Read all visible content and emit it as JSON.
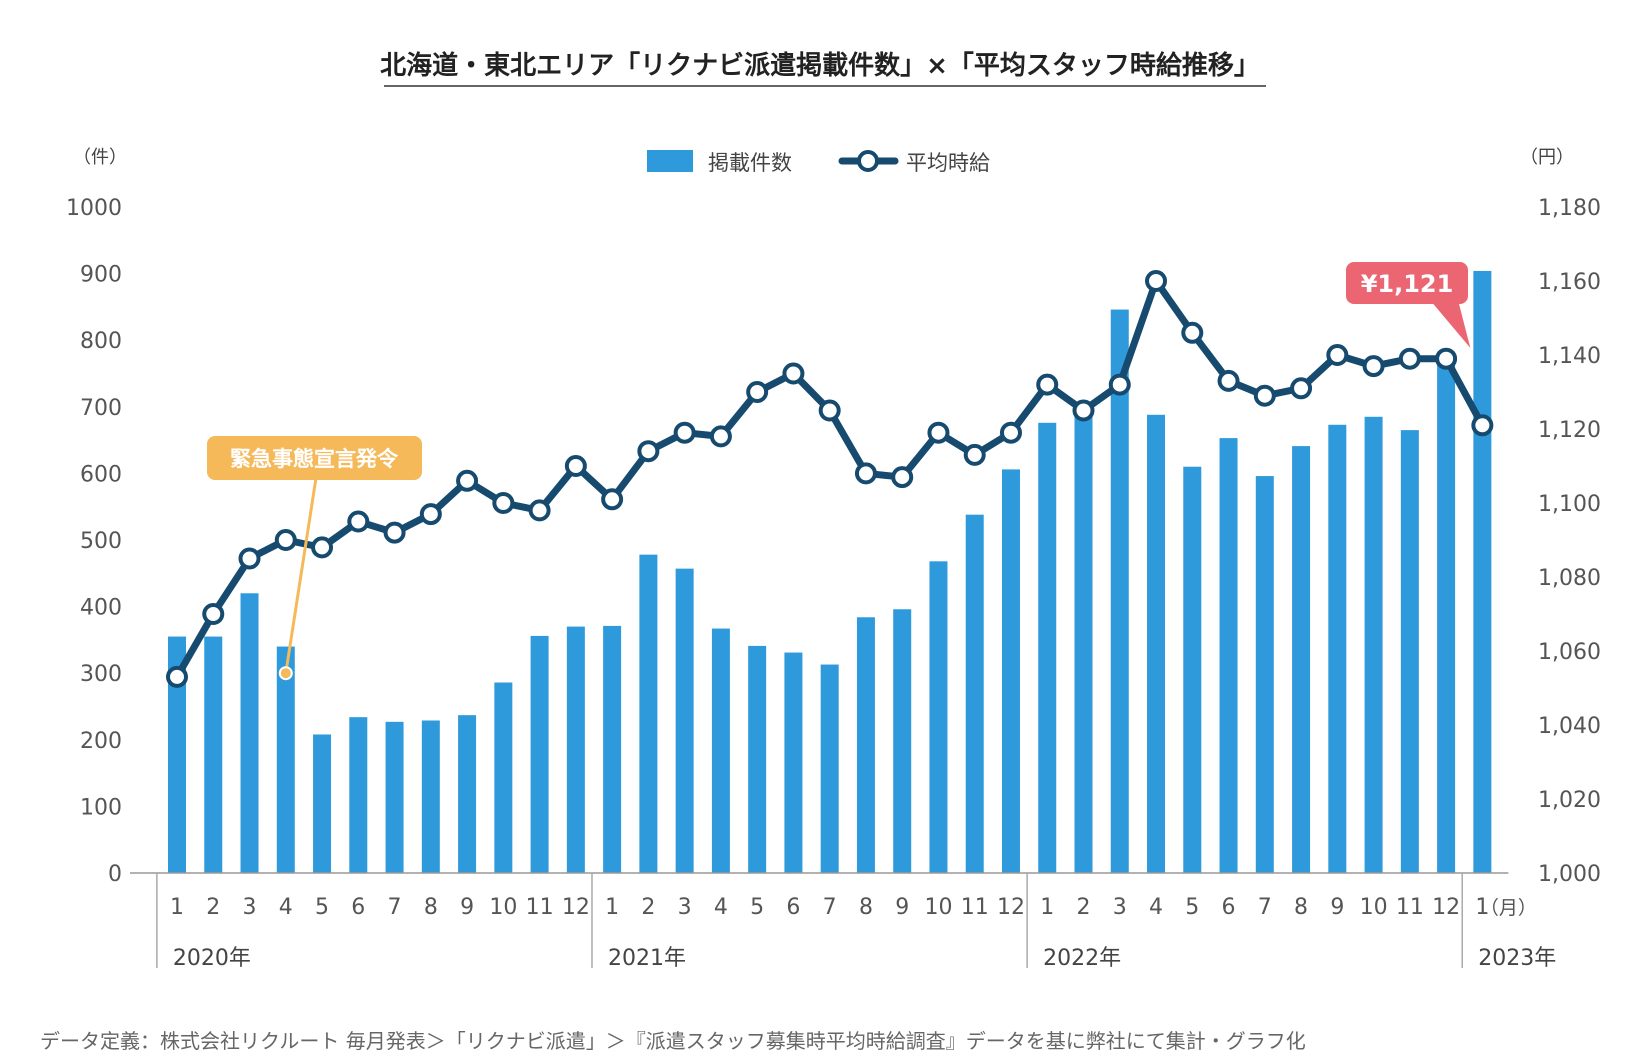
{
  "chart_data": {
    "type": "bar+line",
    "title": "北海道・東北エリア「リクナビ派遣掲載件数」×「平均スタッフ時給推移」",
    "y_left_unit": "（件）",
    "y_right_unit": "（円）",
    "x_unit": "（月）",
    "y_left_ticks": [
      "0",
      "100",
      "200",
      "300",
      "400",
      "500",
      "600",
      "700",
      "800",
      "900",
      "1000"
    ],
    "y_right_ticks": [
      "1,000",
      "1,020",
      "1,040",
      "1,060",
      "1,080",
      "1,100",
      "1,120",
      "1,140",
      "1,160",
      "1,180"
    ],
    "ylim_left": [
      0,
      1000
    ],
    "ylim_right": [
      1000,
      1180
    ],
    "months": [
      "1",
      "2",
      "3",
      "4",
      "5",
      "6",
      "7",
      "8",
      "9",
      "10",
      "11",
      "12",
      "1",
      "2",
      "3",
      "4",
      "5",
      "6",
      "7",
      "8",
      "9",
      "10",
      "11",
      "12",
      "1",
      "2",
      "3",
      "4",
      "5",
      "6",
      "7",
      "8",
      "9",
      "10",
      "11",
      "12",
      "1"
    ],
    "years": [
      {
        "label": "2020年",
        "start": 0
      },
      {
        "label": "2021年",
        "start": 12
      },
      {
        "label": "2022年",
        "start": 24
      },
      {
        "label": "2023年",
        "start": 36
      }
    ],
    "series": [
      {
        "name": "掲載件数",
        "type": "bar",
        "axis": "left",
        "color": "#2F9ADB",
        "values": [
          355,
          355,
          420,
          340,
          208,
          234,
          227,
          229,
          237,
          286,
          356,
          370,
          371,
          478,
          457,
          367,
          341,
          331,
          313,
          384,
          396,
          468,
          538,
          606,
          676,
          688,
          846,
          688,
          610,
          653,
          596,
          641,
          673,
          685,
          665,
          765,
          904
        ]
      },
      {
        "name": "平均時給",
        "type": "line",
        "axis": "right",
        "color": "#164A6E",
        "values": [
          1053,
          1070,
          1085,
          1090,
          1088,
          1095,
          1092,
          1097,
          1106,
          1100,
          1098,
          1110,
          1101,
          1114,
          1119,
          1118,
          1130,
          1135,
          1125,
          1108,
          1107,
          1119,
          1113,
          1119,
          1132,
          1125,
          1132,
          1160,
          1146,
          1133,
          1129,
          1131,
          1140,
          1137,
          1139,
          1139,
          1121
        ]
      }
    ],
    "annotations": {
      "emergency": {
        "text": "緊急事態宣言発令",
        "index": 3,
        "color": "#F5B95A"
      },
      "latest": {
        "text": "¥1,121",
        "index": 36,
        "color": "#EB6672"
      }
    },
    "grid": false,
    "legend_position": "top-center"
  },
  "footer": "データ定義：株式会社リクルート 毎月発表＞「リクナビ派遣」＞『派遣スタッフ募集時平均時給調査』データを基に弊社にて集計・グラフ化"
}
